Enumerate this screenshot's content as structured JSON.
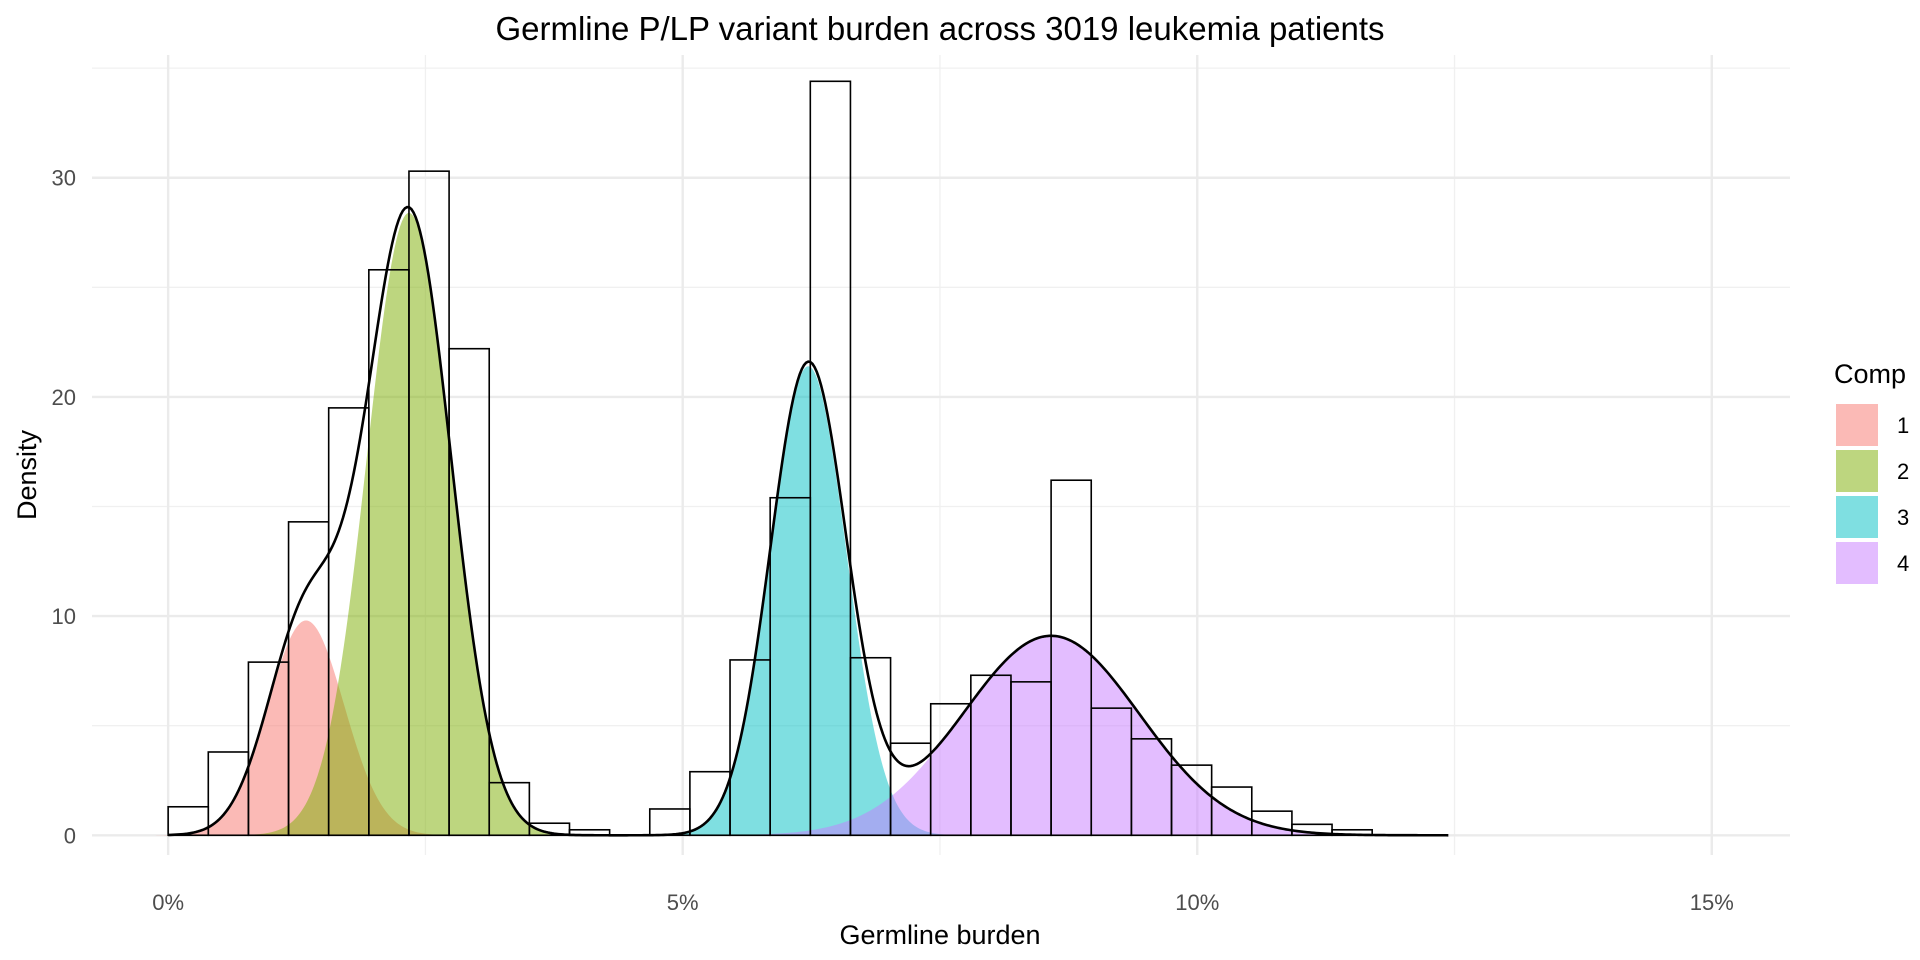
{
  "chart_data": {
    "type": "histogram",
    "title": "Germline P/LP variant burden across 3019 leukemia patients",
    "xlabel": "Germline burden",
    "ylabel": "Density",
    "xlim": [
      -0.0037,
      0.0788
    ],
    "ylim": [
      -0.9,
      35.6
    ],
    "grid": true,
    "x_ticks": [
      {
        "value": 0.0,
        "label": "0%"
      },
      {
        "value": 0.025,
        "label": "5%"
      },
      {
        "value": 0.05,
        "label": "10%"
      },
      {
        "value": 0.075,
        "label": "15%"
      }
    ],
    "y_ticks": [
      {
        "value": 0,
        "label": "0"
      },
      {
        "value": 10,
        "label": "10"
      },
      {
        "value": 20,
        "label": "20"
      },
      {
        "value": 30,
        "label": "30"
      }
    ],
    "legend": {
      "title": "Comp",
      "position": "right",
      "entries": [
        {
          "label": "1",
          "color": "#F8766D"
        },
        {
          "label": "2",
          "color": "#7CAE00"
        },
        {
          "label": "3",
          "color": "#00BFC4"
        },
        {
          "label": "4",
          "color": "#C77CFF"
        }
      ]
    },
    "histogram": {
      "bin_width": 0.00195,
      "bins": [
        {
          "x0": 0.0,
          "density": 1.3
        },
        {
          "x0": 0.00195,
          "density": 3.8
        },
        {
          "x0": 0.0039,
          "density": 7.9
        },
        {
          "x0": 0.00585,
          "density": 14.3
        },
        {
          "x0": 0.0078,
          "density": 19.5
        },
        {
          "x0": 0.00975,
          "density": 25.8
        },
        {
          "x0": 0.0117,
          "density": 30.3
        },
        {
          "x0": 0.01365,
          "density": 22.2
        },
        {
          "x0": 0.0156,
          "density": 2.4
        },
        {
          "x0": 0.01755,
          "density": 0.55
        },
        {
          "x0": 0.0195,
          "density": 0.25
        },
        {
          "x0": 0.02145,
          "density": 0.0
        },
        {
          "x0": 0.0234,
          "density": 1.2
        },
        {
          "x0": 0.02535,
          "density": 2.9
        },
        {
          "x0": 0.0273,
          "density": 8.0
        },
        {
          "x0": 0.02925,
          "density": 15.4
        },
        {
          "x0": 0.0312,
          "density": 34.4
        },
        {
          "x0": 0.03315,
          "density": 8.1
        },
        {
          "x0": 0.0351,
          "density": 4.2
        },
        {
          "x0": 0.03705,
          "density": 6.0
        },
        {
          "x0": 0.039,
          "density": 7.3
        },
        {
          "x0": 0.04095,
          "density": 7.0
        },
        {
          "x0": 0.0429,
          "density": 16.2
        },
        {
          "x0": 0.04485,
          "density": 5.8
        },
        {
          "x0": 0.0468,
          "density": 4.4
        },
        {
          "x0": 0.04875,
          "density": 3.2
        },
        {
          "x0": 0.0507,
          "density": 2.2
        },
        {
          "x0": 0.05265,
          "density": 1.1
        },
        {
          "x0": 0.0546,
          "density": 0.5
        },
        {
          "x0": 0.05655,
          "density": 0.25
        }
      ]
    },
    "mixture_components": [
      {
        "name": "1",
        "mean": 0.0067,
        "sd": 0.00185,
        "peak_density": 9.8,
        "color": "#F8766D"
      },
      {
        "name": "2",
        "mean": 0.0117,
        "sd": 0.00205,
        "peak_density": 28.4,
        "color": "#7CAE00"
      },
      {
        "name": "3",
        "mean": 0.0311,
        "sd": 0.00185,
        "peak_density": 21.4,
        "color": "#00BFC4"
      },
      {
        "name": "4",
        "mean": 0.0429,
        "sd": 0.0043,
        "peak_density": 9.1,
        "color": "#C77CFF"
      }
    ],
    "total_density_curve": {
      "x_range": [
        0.0,
        0.0622
      ],
      "description": "sum of mixture components",
      "color": "#000000"
    }
  }
}
